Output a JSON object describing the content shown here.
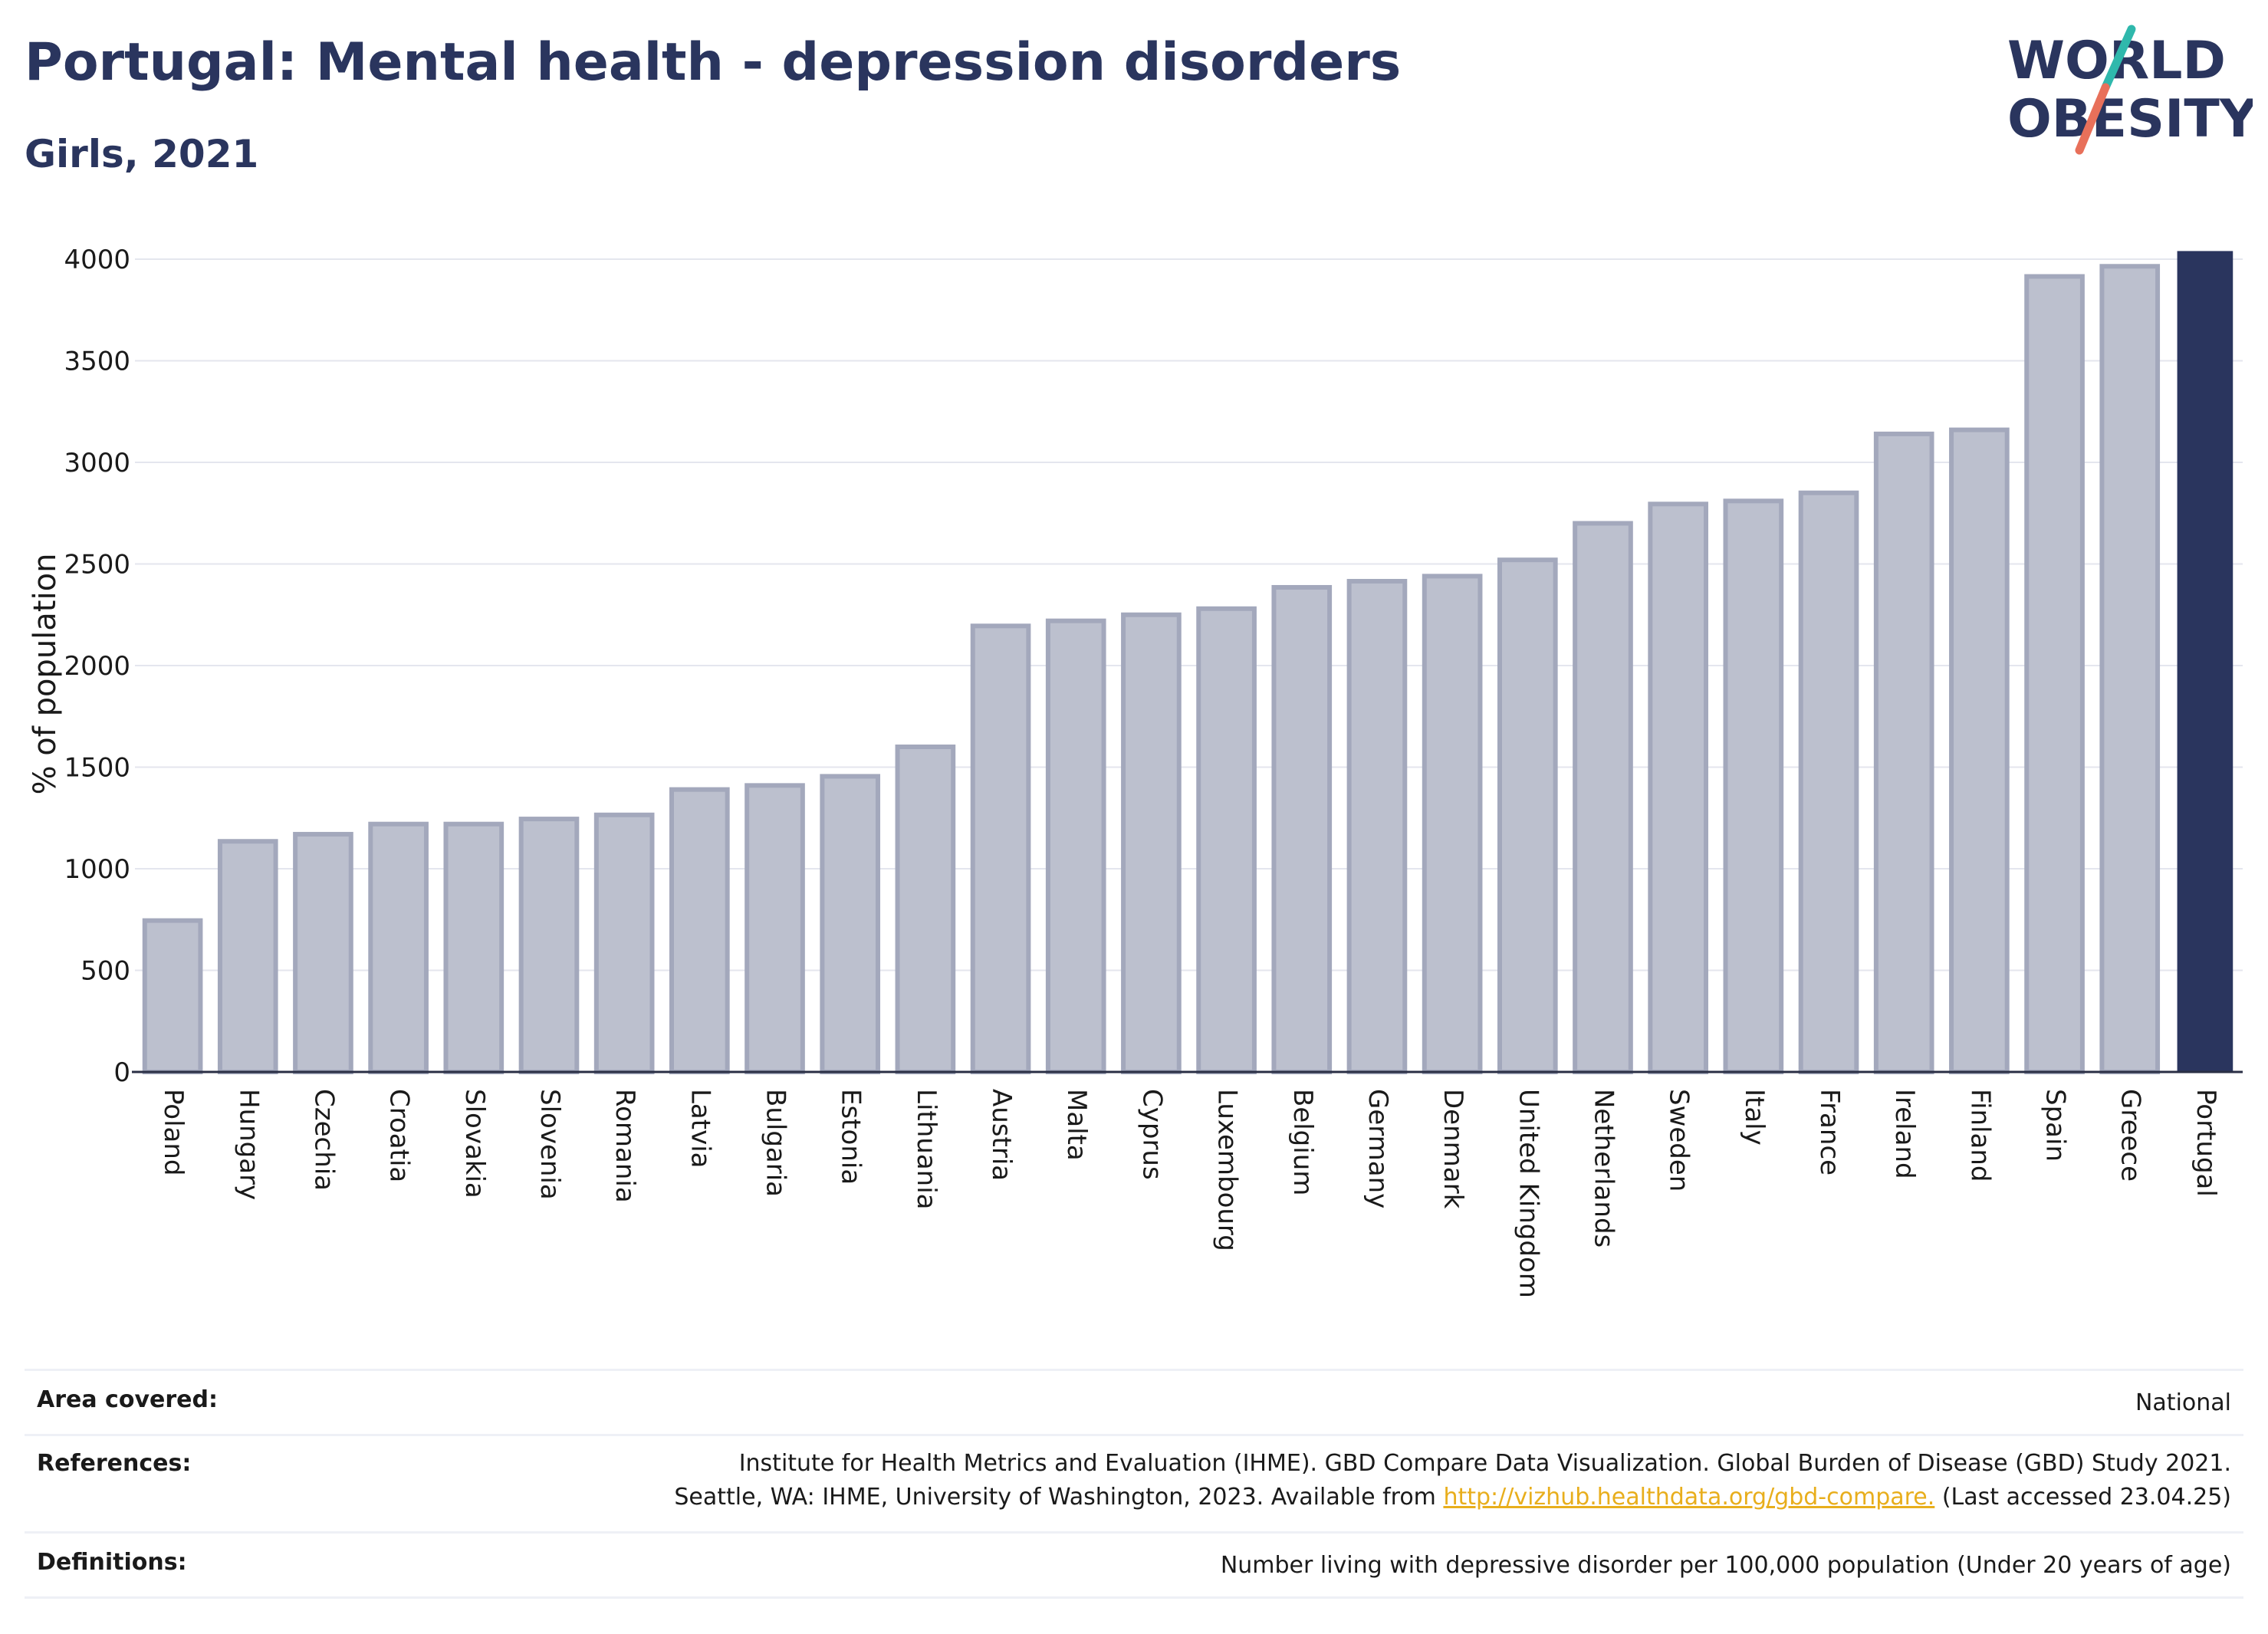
{
  "header": {
    "title": "Portugal: Mental health - depression disorders",
    "subtitle": "Girls, 2021"
  },
  "logo": {
    "line1": "WORLD",
    "line2": "OBESITY",
    "colors": {
      "text": "#2a355e",
      "slash_top": "#2fb8ac",
      "slash_bottom": "#e8705a"
    }
  },
  "colors": {
    "highlight_bar": "#2a355e",
    "other_bar_fill": "#bcc0ce",
    "other_bar_stroke": "#a3a8bc",
    "gridline": "#e4e6ee",
    "link": "#e8ae1c"
  },
  "chart_data": {
    "type": "bar",
    "ylabel": "% of population",
    "xlabel": "",
    "ylim": [
      0,
      4000
    ],
    "yticks": [
      0,
      500,
      1000,
      1500,
      2000,
      2500,
      3000,
      3500,
      4000
    ],
    "grid": true,
    "highlight": "Portugal",
    "categories": [
      "Poland",
      "Hungary",
      "Czechia",
      "Croatia",
      "Slovakia",
      "Slovenia",
      "Romania",
      "Latvia",
      "Bulgaria",
      "Estonia",
      "Lithuania",
      "Austria",
      "Malta",
      "Cyprus",
      "Luxembourg",
      "Belgium",
      "Germany",
      "Denmark",
      "United Kingdom",
      "Netherlands",
      "Sweden",
      "Italy",
      "France",
      "Ireland",
      "Finland",
      "Spain",
      "Greece",
      "Portugal"
    ],
    "values": [
      745,
      1135,
      1170,
      1220,
      1220,
      1245,
      1265,
      1390,
      1410,
      1455,
      1600,
      2195,
      2220,
      2250,
      2280,
      2385,
      2415,
      2440,
      2520,
      2700,
      2795,
      2810,
      2850,
      3140,
      3160,
      3915,
      3965,
      4040
    ]
  },
  "info": {
    "area_label": "Area covered:",
    "area_value": "National",
    "references_label": "References:",
    "references_line1": "Institute for Health Metrics and Evaluation (IHME). GBD Compare Data Visualization. Global Burden of Disease (GBD) Study 2021.",
    "references_line2_pre": "Seattle, WA: IHME, University of Washington, 2023. Available from ",
    "references_link": "http://vizhub.healthdata.org/gbd-compare.",
    "references_line2_post": " (Last accessed 23.04.25)",
    "definitions_label": "Definitions:",
    "definitions_value": "Number living with depressive disorder per 100,000 population (Under 20 years of age)"
  }
}
